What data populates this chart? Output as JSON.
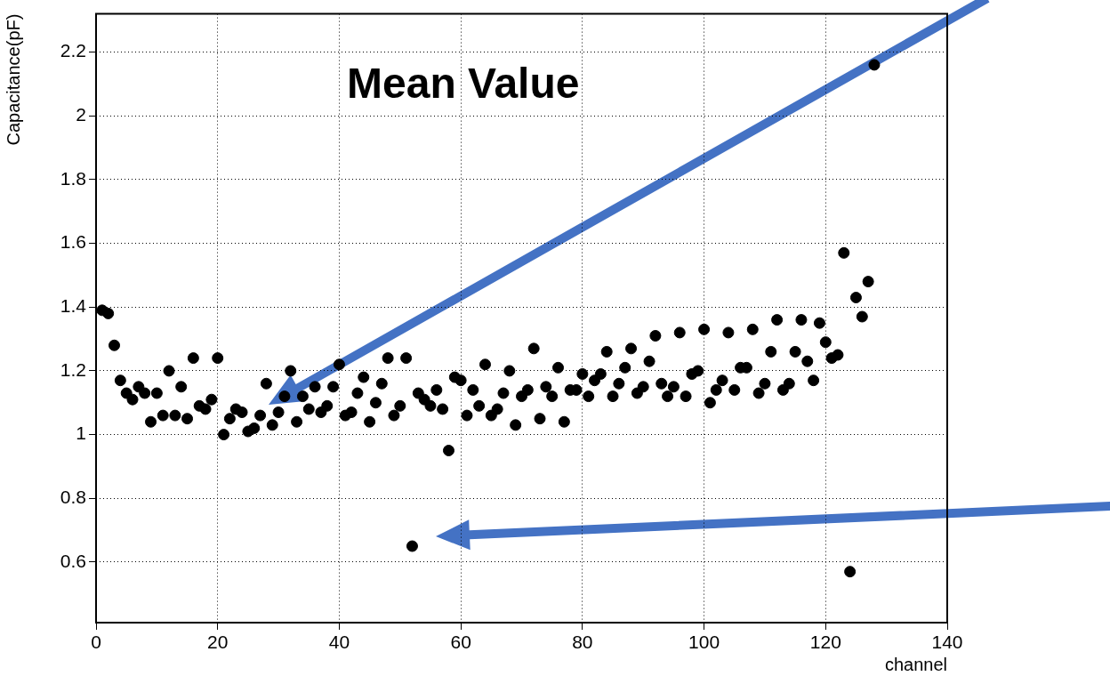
{
  "chart_data": {
    "type": "scatter",
    "xlabel": "channel",
    "ylabel": "Capacitance(pF)",
    "annotations": [
      "Mean Value"
    ],
    "x": [
      1,
      2,
      3,
      4,
      5,
      6,
      7,
      8,
      9,
      10,
      11,
      12,
      13,
      14,
      15,
      16,
      17,
      18,
      19,
      20,
      21,
      22,
      23,
      24,
      25,
      26,
      27,
      28,
      29,
      30,
      31,
      32,
      33,
      34,
      35,
      36,
      37,
      38,
      39,
      40,
      41,
      42,
      43,
      44,
      45,
      46,
      47,
      48,
      49,
      50,
      51,
      52,
      53,
      54,
      55,
      56,
      57,
      58,
      59,
      60,
      61,
      62,
      63,
      64,
      65,
      66,
      67,
      68,
      69,
      70,
      71,
      72,
      73,
      74,
      75,
      76,
      77,
      78,
      79,
      80,
      81,
      82,
      83,
      84,
      85,
      86,
      87,
      88,
      89,
      90,
      91,
      92,
      93,
      94,
      95,
      96,
      97,
      98,
      99,
      100,
      101,
      102,
      103,
      104,
      105,
      106,
      107,
      108,
      109,
      110,
      111,
      112,
      113,
      114,
      115,
      116,
      117,
      118,
      119,
      120,
      121,
      122,
      123,
      124,
      125,
      126,
      127,
      128
    ],
    "values": [
      1.39,
      1.38,
      1.28,
      1.17,
      1.13,
      1.11,
      1.15,
      1.13,
      1.04,
      1.13,
      1.06,
      1.2,
      1.06,
      1.15,
      1.05,
      1.24,
      1.09,
      1.08,
      1.11,
      1.24,
      1.0,
      1.05,
      1.08,
      1.07,
      1.01,
      1.02,
      1.06,
      1.16,
      1.03,
      1.07,
      1.12,
      1.2,
      1.04,
      1.12,
      1.08,
      1.15,
      1.07,
      1.09,
      1.15,
      1.22,
      1.06,
      1.07,
      1.13,
      1.18,
      1.04,
      1.1,
      1.16,
      1.24,
      1.06,
      1.09,
      1.24,
      0.65,
      1.13,
      1.11,
      1.09,
      1.14,
      1.08,
      0.95,
      1.18,
      1.17,
      1.06,
      1.14,
      1.09,
      1.22,
      1.06,
      1.08,
      1.13,
      1.2,
      1.03,
      1.12,
      1.14,
      1.27,
      1.05,
      1.15,
      1.12,
      1.21,
      1.04,
      1.14,
      1.14,
      1.19,
      1.12,
      1.17,
      1.19,
      1.26,
      1.12,
      1.16,
      1.21,
      1.27,
      1.13,
      1.15,
      1.23,
      1.31,
      1.16,
      1.12,
      1.15,
      1.32,
      1.12,
      1.19,
      1.2,
      1.33,
      1.1,
      1.14,
      1.17,
      1.32,
      1.14,
      1.21,
      1.21,
      1.33,
      1.13,
      1.16,
      1.26,
      1.36,
      1.14,
      1.16,
      1.26,
      1.36,
      1.23,
      1.17,
      1.35,
      1.29,
      1.24,
      1.25,
      1.57,
      0.57,
      1.43,
      1.37,
      1.48,
      2.16
    ],
    "color": "#000000",
    "marker": "circle",
    "xlim": [
      0,
      140
    ],
    "xticks": [
      0,
      20,
      40,
      60,
      80,
      100,
      120,
      140
    ],
    "ylim": [
      0.41,
      2.32
    ],
    "yticks": [
      0.6,
      0.8,
      1,
      1.2,
      1.4,
      1.6,
      1.8,
      2,
      2.2
    ],
    "grid": true,
    "legend": false
  }
}
